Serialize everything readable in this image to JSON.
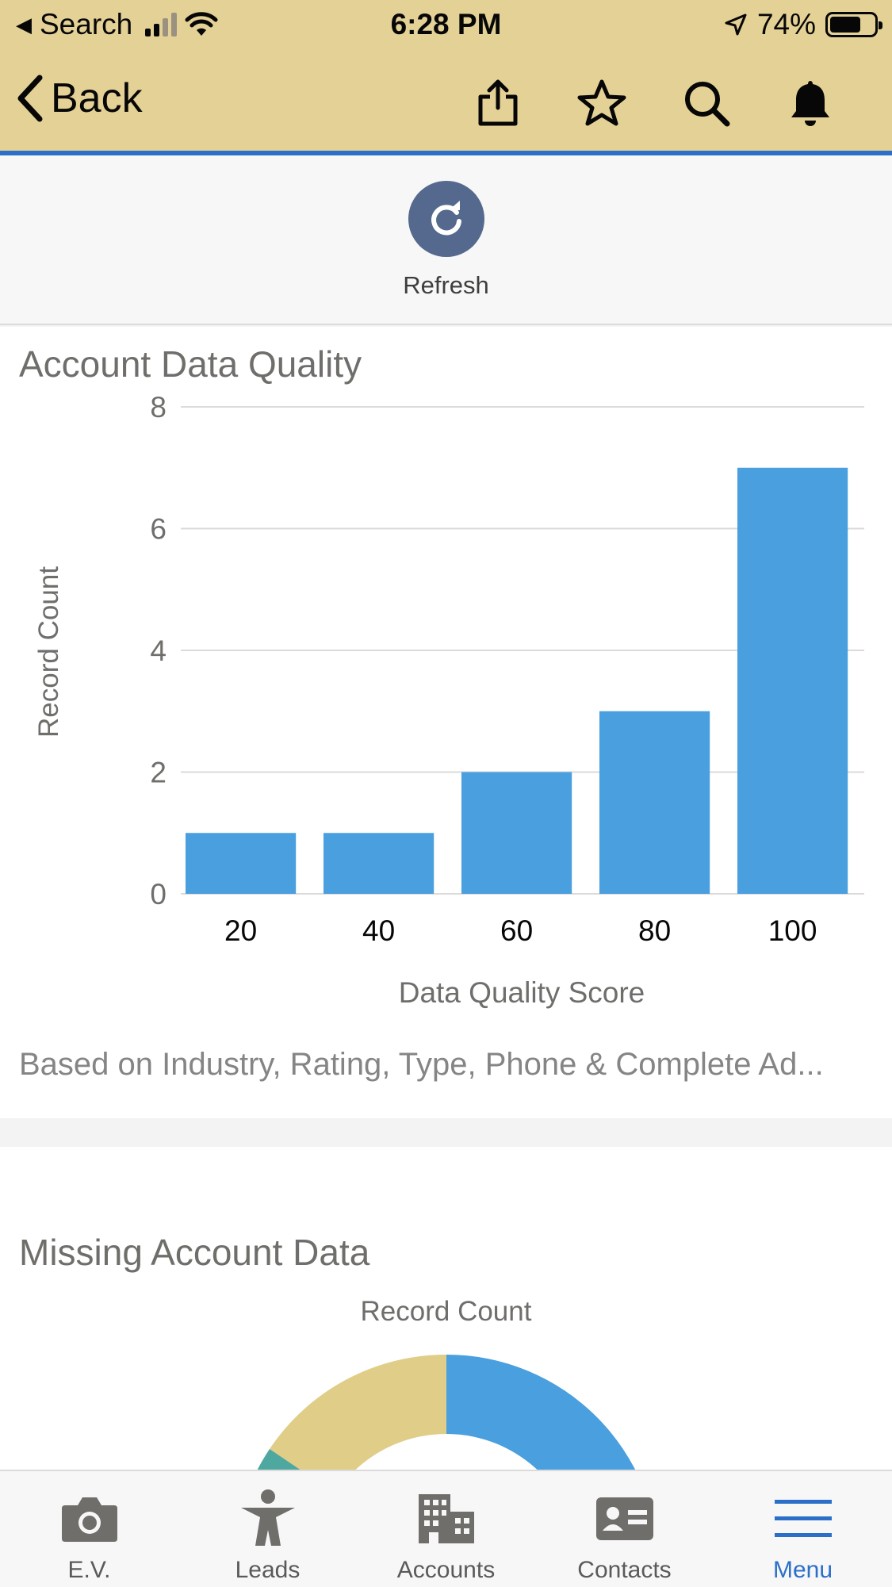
{
  "status_bar": {
    "back_app": "Search",
    "time": "6:28 PM",
    "battery": "74%"
  },
  "nav": {
    "back_label": "Back",
    "icons": [
      "share-icon",
      "star-icon",
      "search-icon",
      "bell-icon"
    ]
  },
  "refresh": {
    "label": "Refresh"
  },
  "colors": {
    "header_bg": "#e3d196",
    "accent_blue": "#2c6fc8",
    "bar": "#4a9fde",
    "refresh_btn": "#54698d",
    "donut_tan": "#dfcd88",
    "donut_teal": "#4fa89f"
  },
  "card1": {
    "title": "Account Data Quality",
    "footnote": "Based on Industry, Rating, Type, Phone & Complete Ad..."
  },
  "chart_data": {
    "type": "bar",
    "categories": [
      "20",
      "40",
      "60",
      "80",
      "100"
    ],
    "values": [
      1,
      1,
      2,
      3,
      7
    ],
    "title": "Account Data Quality",
    "xlabel": "Data Quality Score",
    "ylabel": "Record Count",
    "ylim": [
      0,
      8
    ],
    "yticks": [
      "0",
      "2",
      "4",
      "6",
      "8"
    ],
    "grid": true
  },
  "card2": {
    "title": "Missing Account Data",
    "donut_label": "Record Count"
  },
  "tabs": [
    {
      "label": "E.V.",
      "icon": "camera-icon",
      "active": false
    },
    {
      "label": "Leads",
      "icon": "leads-icon",
      "active": false
    },
    {
      "label": "Accounts",
      "icon": "building-icon",
      "active": false
    },
    {
      "label": "Contacts",
      "icon": "contact-card-icon",
      "active": false
    },
    {
      "label": "Menu",
      "icon": "menu-icon",
      "active": true
    }
  ]
}
